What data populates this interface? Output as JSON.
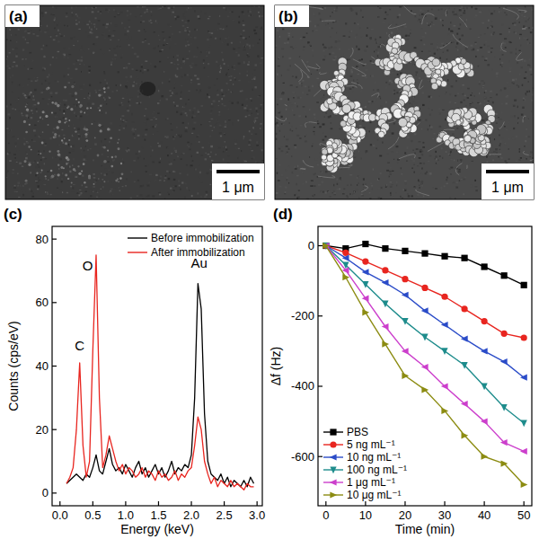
{
  "chart_data": [
    {
      "type": "image",
      "title": "(a)",
      "scale_bar": "1 μm"
    },
    {
      "type": "image",
      "title": "(b)",
      "scale_bar": "1 μm"
    },
    {
      "type": "line",
      "title": "(c)",
      "x_label": "Energy  (keV)",
      "y_label": "Counts (cps/eV)",
      "x": [
        0.1,
        0.15,
        0.2,
        0.25,
        0.3,
        0.35,
        0.4,
        0.45,
        0.5,
        0.55,
        0.6,
        0.65,
        0.7,
        0.75,
        0.8,
        0.85,
        0.9,
        0.95,
        1.0,
        1.05,
        1.1,
        1.15,
        1.2,
        1.25,
        1.3,
        1.35,
        1.4,
        1.45,
        1.5,
        1.55,
        1.6,
        1.65,
        1.7,
        1.75,
        1.8,
        1.85,
        1.9,
        1.95,
        2.0,
        2.05,
        2.1,
        2.15,
        2.2,
        2.25,
        2.3,
        2.35,
        2.4,
        2.45,
        2.5,
        2.55,
        2.6,
        2.65,
        2.7,
        2.75,
        2.8,
        2.85,
        2.9,
        2.95
      ],
      "xlim": [
        -0.12,
        3.08
      ],
      "xticks": [
        {
          "value": 0,
          "label": "0.0"
        },
        0.5,
        {
          "value": 1,
          "label": "1.0"
        },
        1.5,
        {
          "value": 2,
          "label": "2.0"
        },
        2.5,
        {
          "value": 3,
          "label": "3.0"
        }
      ],
      "ylim": [
        -4,
        84
      ],
      "yticks": [
        0,
        20,
        40,
        60,
        80
      ],
      "legend": "upper right",
      "series": [
        {
          "name": "Before immobilization",
          "color": "#000000",
          "values": [
            3,
            4,
            5,
            6,
            5,
            4,
            6,
            5,
            8,
            12,
            7,
            6,
            10,
            14,
            9,
            7,
            8,
            6,
            9,
            7,
            5,
            8,
            10,
            6,
            8,
            5,
            7,
            9,
            6,
            8,
            5,
            7,
            10,
            6,
            8,
            7,
            9,
            8,
            12,
            30,
            66,
            58,
            25,
            10,
            6,
            5,
            4,
            6,
            3,
            5,
            2,
            4,
            3,
            2,
            4,
            2,
            5,
            3
          ]
        },
        {
          "name": "After immobilization",
          "color": "#e8251f",
          "values": [
            3,
            5,
            8,
            20,
            41,
            15,
            5,
            10,
            45,
            75,
            30,
            8,
            12,
            18,
            14,
            10,
            7,
            9,
            6,
            8,
            7,
            5,
            6,
            8,
            5,
            7,
            6,
            4,
            7,
            5,
            6,
            4,
            5,
            7,
            4,
            6,
            5,
            7,
            8,
            15,
            24,
            20,
            10,
            6,
            3,
            5,
            2,
            4,
            3,
            2,
            4,
            2,
            3,
            2,
            1,
            3,
            2,
            2
          ]
        }
      ],
      "annotations": [
        {
          "text": "C",
          "x": 0.3,
          "y": 45
        },
        {
          "text": "O",
          "x": 0.42,
          "y": 70
        },
        {
          "text": "Au",
          "x": 2.12,
          "y": 71
        }
      ]
    },
    {
      "type": "line",
      "title": "(d)",
      "x_label": "Time (min)",
      "y_label": "Δf  (Hz)",
      "x": [
        0,
        5,
        10,
        15,
        20,
        25,
        30,
        35,
        40,
        45,
        50
      ],
      "xlim": [
        -2,
        52
      ],
      "xticks": [
        0,
        10,
        20,
        30,
        40,
        50
      ],
      "ylim": [
        -740,
        55
      ],
      "yticks": [
        0,
        -200,
        -400,
        -600
      ],
      "legend": "lower left",
      "series": [
        {
          "name": "PBS",
          "color": "#000000",
          "marker": "square",
          "values": [
            0,
            -8,
            5,
            -8,
            -15,
            -22,
            -30,
            -35,
            -60,
            -85,
            -112
          ]
        },
        {
          "name": "5 ng mL⁻¹",
          "color": "#e8251f",
          "marker": "circle",
          "values": [
            0,
            -20,
            -45,
            -70,
            -95,
            -120,
            -145,
            -180,
            -215,
            -250,
            -262
          ]
        },
        {
          "name": "10 ng mL⁻¹",
          "color": "#2b4cc8",
          "marker": "triangle-left",
          "values": [
            0,
            -35,
            -75,
            -105,
            -140,
            -185,
            -225,
            -265,
            -300,
            -330,
            -375
          ]
        },
        {
          "name": "100 ng mL⁻¹",
          "color": "#1e8c8c",
          "marker": "triangle-down",
          "values": [
            0,
            -55,
            -110,
            -165,
            -215,
            -260,
            -300,
            -340,
            -400,
            -460,
            -505
          ]
        },
        {
          "name": "1 μg mL⁻¹",
          "color": "#cc3fcc",
          "marker": "triangle-left",
          "values": [
            0,
            -70,
            -150,
            -230,
            -300,
            -345,
            -400,
            -450,
            -500,
            -560,
            -585
          ]
        },
        {
          "name": "10 μg mL⁻¹",
          "color": "#8c8c12",
          "marker": "triangle-right",
          "values": [
            0,
            -90,
            -190,
            -280,
            -370,
            -410,
            -470,
            -540,
            -600,
            -620,
            -680
          ]
        }
      ]
    }
  ]
}
